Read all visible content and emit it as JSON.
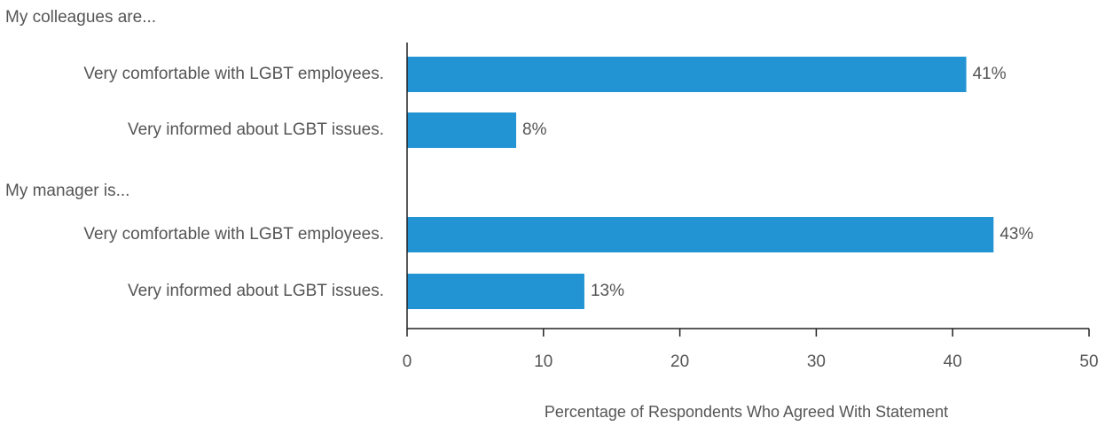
{
  "chart_data": {
    "type": "bar",
    "orientation": "horizontal",
    "groups": [
      {
        "label": "My colleagues are...",
        "items": [
          {
            "category": "Very comfortable with LGBT employees.",
            "value": 41,
            "value_label": "41%"
          },
          {
            "category": "Very informed about LGBT issues.",
            "value": 8,
            "value_label": "8%"
          }
        ]
      },
      {
        "label": "My manager is...",
        "items": [
          {
            "category": "Very comfortable with LGBT employees.",
            "value": 43,
            "value_label": "43%"
          },
          {
            "category": "Very informed about LGBT issues.",
            "value": 13,
            "value_label": "13%"
          }
        ]
      }
    ],
    "xlabel": "Percentage of Respondents Who Agreed With Statement",
    "ylabel": "",
    "xlim": [
      0,
      50
    ],
    "xticks": [
      "0",
      "10",
      "20",
      "30",
      "40",
      "50"
    ],
    "grid": false,
    "legend": "none",
    "bar_color": "#2293d3"
  }
}
